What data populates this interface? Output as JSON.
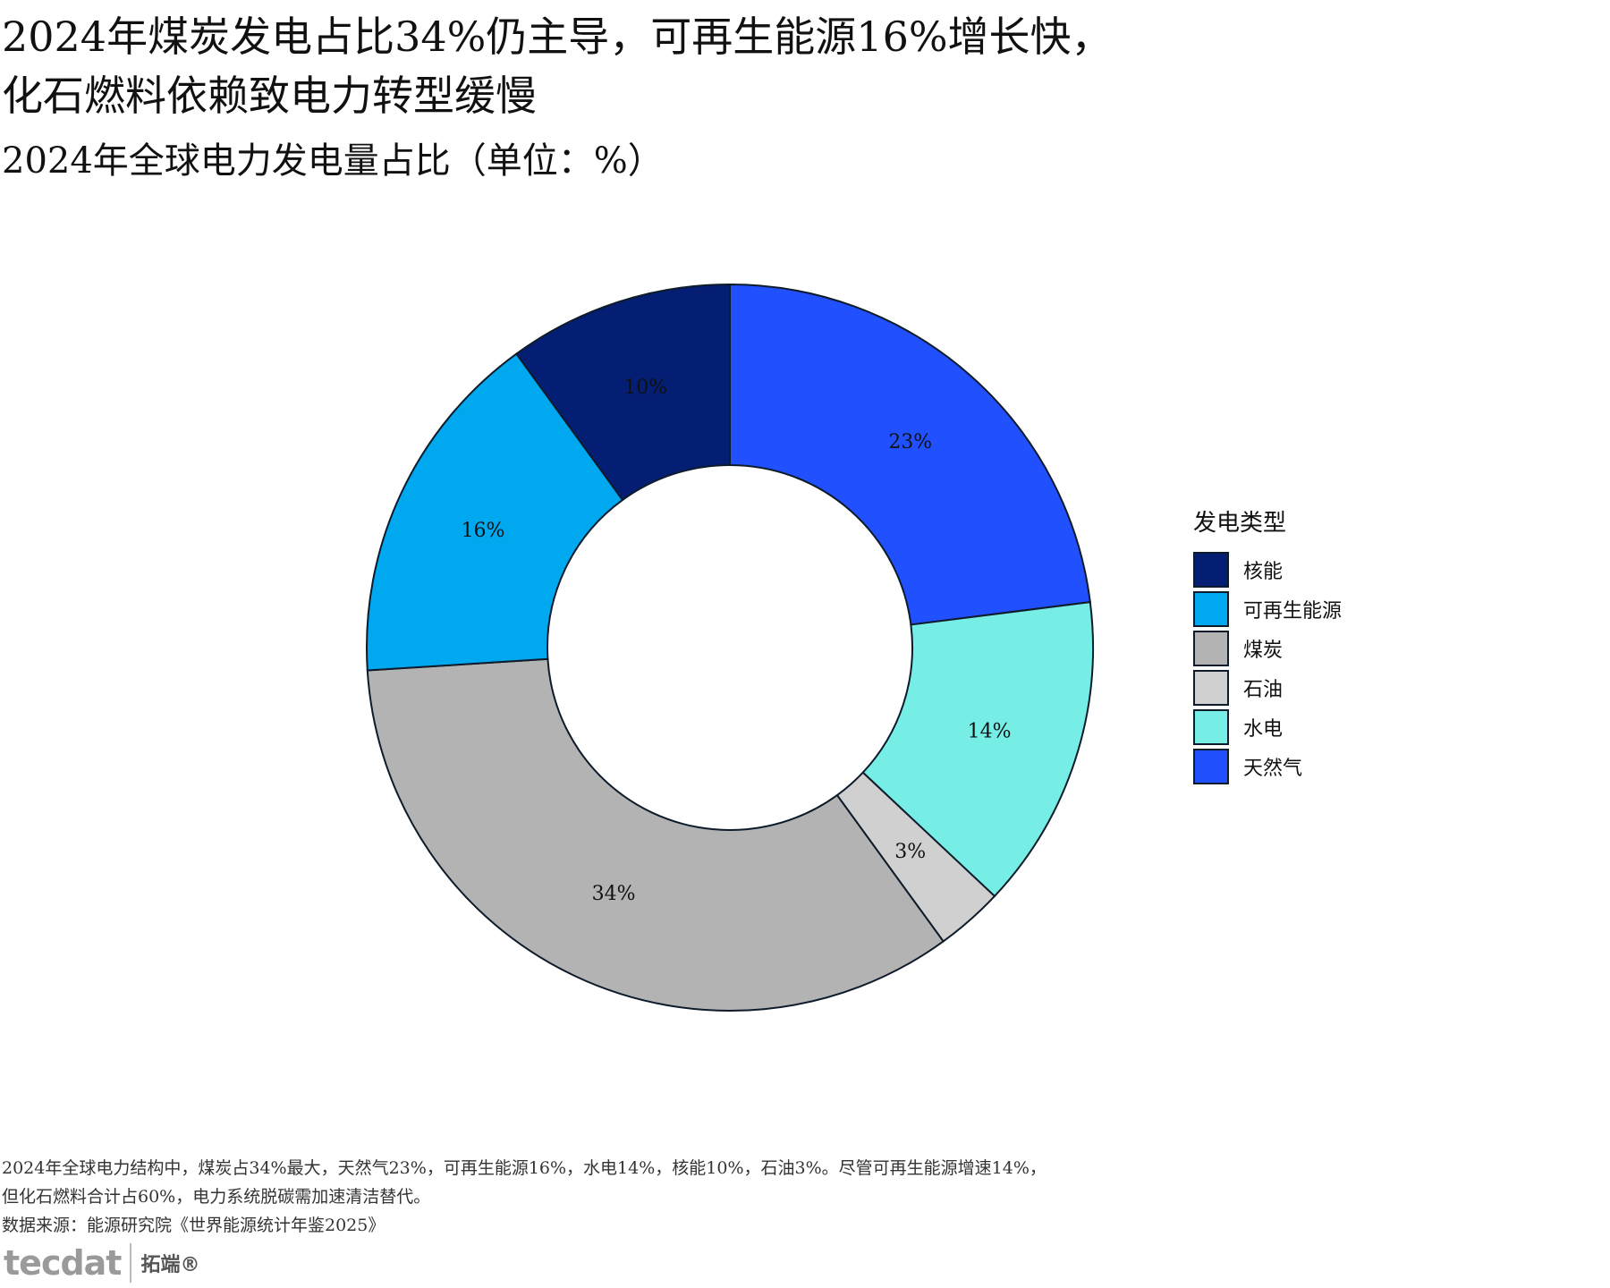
{
  "title": {
    "line1": "2024年煤炭发电占比34%仍主导，可再生能源16%增长快，",
    "line2": "化石燃料依赖致电力转型缓慢"
  },
  "subtitle": "2024年全球电力发电量占比（单位：%）",
  "legend": {
    "title": "发电类型",
    "items": [
      {
        "label": "核能",
        "color": "#041e73"
      },
      {
        "label": "可再生能源",
        "color": "#00a8ef"
      },
      {
        "label": "煤炭",
        "color": "#b3b3b3"
      },
      {
        "label": "石油",
        "color": "#d0d0d0"
      },
      {
        "label": "水电",
        "color": "#76eee6"
      },
      {
        "label": "天然气",
        "color": "#2150ff"
      }
    ]
  },
  "chart_data": {
    "type": "pie",
    "donut": true,
    "slices": [
      {
        "name": "天然气",
        "value": 23,
        "label": "23%",
        "color": "#2150ff"
      },
      {
        "name": "水电",
        "value": 14,
        "label": "14%",
        "color": "#76eee6"
      },
      {
        "name": "石油",
        "value": 3,
        "label": "3%",
        "color": "#d0d0d0"
      },
      {
        "name": "煤炭",
        "value": 34,
        "label": "34%",
        "color": "#b3b3b3"
      },
      {
        "name": "可再生能源",
        "value": 16,
        "label": "16%",
        "color": "#00a8ef"
      },
      {
        "name": "核能",
        "value": 10,
        "label": "10%",
        "color": "#041e73"
      }
    ],
    "legend_position": "right",
    "stroke_color": "#0d1b2a"
  },
  "footer": {
    "line1": "2024年全球电力结构中，煤炭占34%最大，天然气23%，可再生能源16%，水电14%，核能10%，石油3%。尽管可再生能源增速14%，",
    "line2": "但化石燃料合计占60%，电力系统脱碳需加速清洁替代。",
    "line3": "数据来源：能源研究院《世界能源统计年鉴2025》"
  },
  "brand": {
    "logo": "tecdat",
    "name": "拓端®"
  }
}
